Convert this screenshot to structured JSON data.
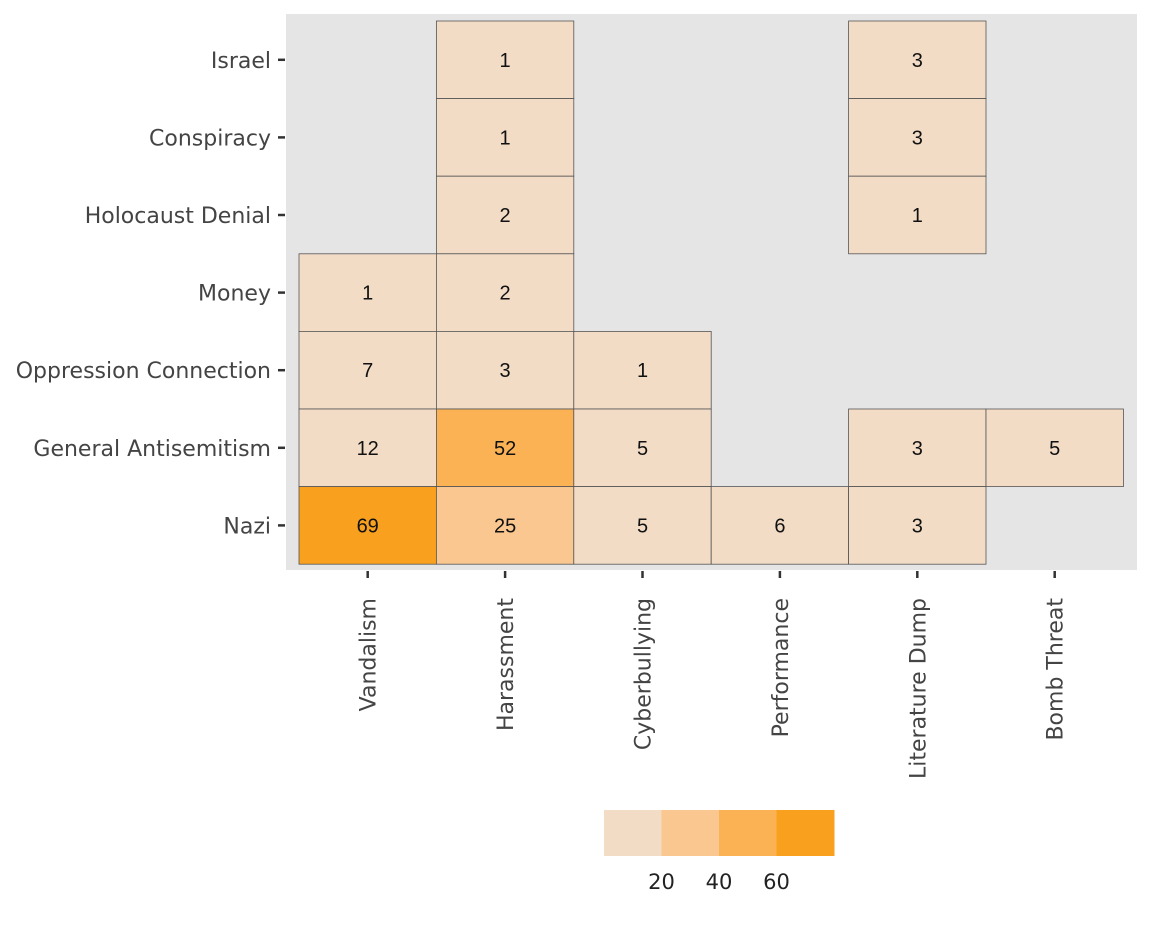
{
  "chart_data": {
    "type": "heatmap",
    "x_categories": [
      "Vandalism",
      "Harassment",
      "Cyberbullying",
      "Performance",
      "Literature Dump",
      "Bomb Threat"
    ],
    "y_categories": [
      "Israel",
      "Conspiracy",
      "Holocaust Denial",
      "Money",
      "Oppression Connection",
      "General Antisemitism",
      "Nazi"
    ],
    "cells": [
      {
        "x": "Harassment",
        "y": "Israel",
        "value": 1
      },
      {
        "x": "Literature Dump",
        "y": "Israel",
        "value": 3
      },
      {
        "x": "Harassment",
        "y": "Conspiracy",
        "value": 1
      },
      {
        "x": "Literature Dump",
        "y": "Conspiracy",
        "value": 3
      },
      {
        "x": "Harassment",
        "y": "Holocaust Denial",
        "value": 2
      },
      {
        "x": "Literature Dump",
        "y": "Holocaust Denial",
        "value": 1
      },
      {
        "x": "Vandalism",
        "y": "Money",
        "value": 1
      },
      {
        "x": "Harassment",
        "y": "Money",
        "value": 2
      },
      {
        "x": "Vandalism",
        "y": "Oppression Connection",
        "value": 7
      },
      {
        "x": "Harassment",
        "y": "Oppression Connection",
        "value": 3
      },
      {
        "x": "Cyberbullying",
        "y": "Oppression Connection",
        "value": 1
      },
      {
        "x": "Vandalism",
        "y": "General Antisemitism",
        "value": 12
      },
      {
        "x": "Harassment",
        "y": "General Antisemitism",
        "value": 52
      },
      {
        "x": "Cyberbullying",
        "y": "General Antisemitism",
        "value": 5
      },
      {
        "x": "Literature Dump",
        "y": "General Antisemitism",
        "value": 3
      },
      {
        "x": "Bomb Threat",
        "y": "General Antisemitism",
        "value": 5
      },
      {
        "x": "Vandalism",
        "y": "Nazi",
        "value": 69
      },
      {
        "x": "Harassment",
        "y": "Nazi",
        "value": 25
      },
      {
        "x": "Cyberbullying",
        "y": "Nazi",
        "value": 5
      },
      {
        "x": "Performance",
        "y": "Nazi",
        "value": 6
      },
      {
        "x": "Literature Dump",
        "y": "Nazi",
        "value": 3
      }
    ],
    "legend": {
      "position": "bottom",
      "ticks": [
        "20",
        "40",
        "60"
      ],
      "bins": [
        {
          "min": 0,
          "max": 20,
          "color": "#F2DCC6"
        },
        {
          "min": 20,
          "max": 40,
          "color": "#F9C78F"
        },
        {
          "min": 40,
          "max": 60,
          "color": "#FBB255"
        },
        {
          "min": 60,
          "max": 80,
          "color": "#F9A11F"
        }
      ]
    },
    "colors": {
      "panel_background": "#E5E5E5",
      "cell_border": "#555555",
      "tick": "#333333"
    },
    "grid": false,
    "title": "",
    "xlabel": "",
    "ylabel": ""
  }
}
